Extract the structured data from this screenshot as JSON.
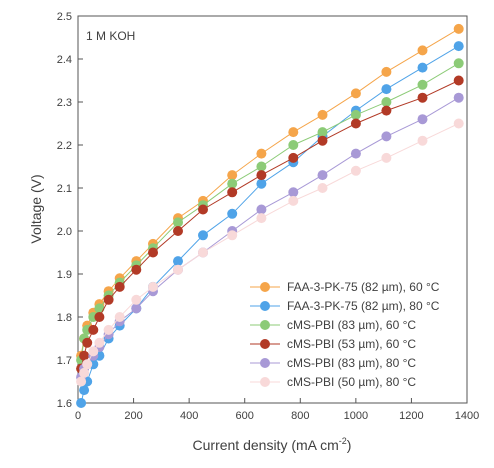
{
  "chart_data": {
    "type": "line",
    "annotation": "1 M KOH",
    "xlabel": "Current density (mA cm",
    "xlabel_sup": "-2",
    "xlabel_close": ")",
    "ylabel": "Voltage (V)",
    "xlim": [
      0,
      1400
    ],
    "ylim": [
      1.6,
      2.5
    ],
    "xticks": [
      0,
      200,
      400,
      600,
      800,
      1000,
      1200,
      1400
    ],
    "yticks": [
      1.6,
      1.7,
      1.8,
      1.9,
      2.0,
      2.1,
      2.2,
      2.3,
      2.4,
      2.5
    ],
    "ytick_labels": [
      "1.6",
      "1.7",
      "1.8",
      "1.9",
      "2.0",
      "2.1",
      "2.2",
      "2.3",
      "2.4",
      "2.5"
    ],
    "legend_position": "bottom-right",
    "x": [
      11,
      22,
      33,
      55,
      77,
      110,
      150,
      210,
      270,
      360,
      450,
      555,
      660,
      775,
      880,
      1000,
      1110,
      1240,
      1370
    ],
    "series": [
      {
        "name": "FAA-3-PK-75 (82 µm), 60 °C",
        "color": "#F5A54A",
        "values": [
          1.71,
          1.75,
          1.78,
          1.81,
          1.83,
          1.86,
          1.89,
          1.93,
          1.97,
          2.03,
          2.07,
          2.13,
          2.18,
          2.23,
          2.27,
          2.32,
          2.37,
          2.42,
          2.47
        ]
      },
      {
        "name": "FAA-3-PK-75 (82 µm), 80 °C",
        "color": "#4FA3E8",
        "values": [
          1.6,
          1.63,
          1.65,
          1.69,
          1.71,
          1.75,
          1.78,
          1.82,
          1.87,
          1.93,
          1.99,
          2.04,
          2.11,
          2.16,
          2.22,
          2.28,
          2.33,
          2.38,
          2.43
        ]
      },
      {
        "name": "cMS-PBI (83 µm), 60 °C",
        "color": "#8CCB77",
        "values": [
          1.7,
          1.75,
          1.77,
          1.8,
          1.82,
          1.85,
          1.88,
          1.92,
          1.96,
          2.02,
          2.06,
          2.11,
          2.15,
          2.2,
          2.23,
          2.27,
          2.3,
          2.34,
          2.39
        ]
      },
      {
        "name": "cMS-PBI (53 µm), 60 °C",
        "color": "#B23A26",
        "values": [
          1.68,
          1.71,
          1.74,
          1.77,
          1.8,
          1.84,
          1.87,
          1.91,
          1.95,
          2.0,
          2.05,
          2.09,
          2.13,
          2.17,
          2.21,
          2.25,
          2.28,
          2.31,
          2.35
        ]
      },
      {
        "name": "cMS-PBI (83 µm), 80 °C",
        "color": "#A899D6",
        "values": [
          1.66,
          1.68,
          1.69,
          1.71,
          1.73,
          1.76,
          1.79,
          1.82,
          1.86,
          1.91,
          1.95,
          2.0,
          2.05,
          2.09,
          2.13,
          2.18,
          2.22,
          2.26,
          2.31
        ]
      },
      {
        "name": "cMS-PBI (50 µm), 80 °C",
        "color": "#F8D9D9",
        "values": [
          1.65,
          1.67,
          1.69,
          1.72,
          1.74,
          1.77,
          1.8,
          1.84,
          1.87,
          1.91,
          1.95,
          1.99,
          2.03,
          2.07,
          2.1,
          2.14,
          2.17,
          2.21,
          2.25
        ]
      }
    ]
  }
}
